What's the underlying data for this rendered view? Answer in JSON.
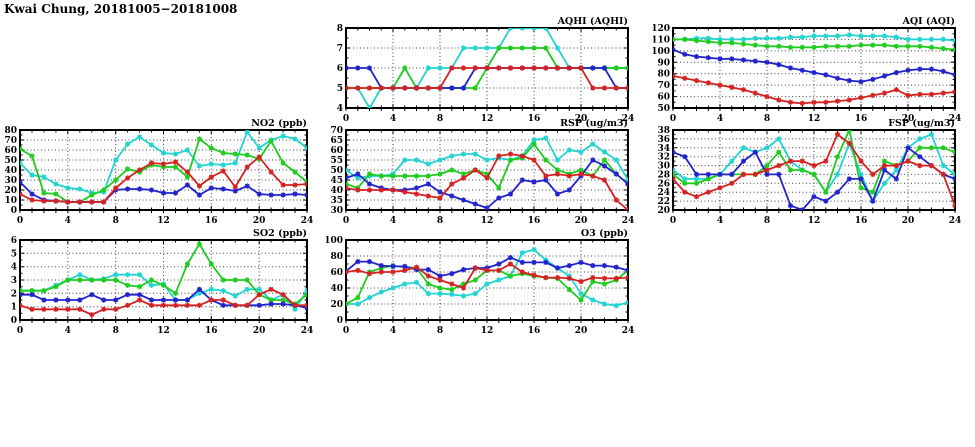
{
  "page_title": "Kwai Chung, 20181005−20181008",
  "colors": {
    "series_cyan": "#22d3d3",
    "series_green": "#1ecc1e",
    "series_blue": "#2222cc",
    "series_red": "#d42222",
    "grid": "#444444",
    "frame": "#000000",
    "background": "#ffffff"
  },
  "chart_data": [
    {
      "id": "aqhi",
      "type": "line",
      "title": "AQHI (AQHI)",
      "xlabel": "",
      "ylabel": "",
      "x": {
        "min": 0,
        "max": 24,
        "ticks": [
          0,
          4,
          8,
          12,
          16,
          20,
          24
        ]
      },
      "y": {
        "min": 4,
        "max": 8,
        "ticks": [
          4,
          5,
          6,
          7,
          8
        ]
      },
      "series": [
        {
          "color_name": "cyan",
          "color": "#22d3d3",
          "values": [
            5,
            5,
            4,
            5,
            5,
            5,
            5,
            6,
            6,
            6,
            7,
            7,
            7,
            7,
            8,
            8,
            8,
            8,
            7,
            6,
            6,
            6,
            6,
            6,
            6
          ]
        },
        {
          "color_name": "green",
          "color": "#1ecc1e",
          "values": [
            5,
            5,
            5,
            5,
            5,
            6,
            5,
            5,
            5,
            5,
            5,
            5,
            6,
            7,
            7,
            7,
            7,
            7,
            6,
            6,
            6,
            6,
            6,
            6,
            6
          ]
        },
        {
          "color_name": "blue",
          "color": "#2222cc",
          "values": [
            6,
            6,
            6,
            5,
            5,
            5,
            5,
            5,
            5,
            5,
            5,
            6,
            6,
            6,
            6,
            6,
            6,
            6,
            6,
            6,
            6,
            6,
            6,
            5,
            5
          ]
        },
        {
          "color_name": "red",
          "color": "#d42222",
          "values": [
            5,
            5,
            5,
            5,
            5,
            5,
            5,
            5,
            5,
            6,
            6,
            6,
            6,
            6,
            6,
            6,
            6,
            6,
            6,
            6,
            6,
            5,
            5,
            5,
            5
          ]
        }
      ]
    },
    {
      "id": "aqi",
      "type": "line",
      "title": "AQI (AQI)",
      "xlabel": "",
      "ylabel": "",
      "x": {
        "min": 0,
        "max": 24,
        "ticks": [
          0,
          4,
          8,
          12,
          16,
          20,
          24
        ]
      },
      "y": {
        "min": 50,
        "max": 120,
        "ticks": [
          50,
          60,
          70,
          80,
          90,
          100,
          110,
          120
        ]
      },
      "series": [
        {
          "color_name": "cyan",
          "color": "#22d3d3",
          "values": [
            110,
            110,
            111,
            111,
            110,
            110,
            110,
            111,
            111,
            111,
            112,
            112,
            113,
            113,
            113,
            114,
            113,
            113,
            113,
            112,
            110,
            110,
            110,
            110,
            109
          ]
        },
        {
          "color_name": "green",
          "color": "#1ecc1e",
          "values": [
            110,
            110,
            109,
            108,
            107,
            107,
            106,
            105,
            104,
            104,
            103,
            103,
            103,
            104,
            104,
            104,
            105,
            105,
            105,
            104,
            104,
            104,
            103,
            102,
            101
          ]
        },
        {
          "color_name": "blue",
          "color": "#2222cc",
          "values": [
            101,
            97,
            95,
            94,
            93,
            93,
            92,
            91,
            90,
            88,
            85,
            83,
            81,
            79,
            76,
            74,
            73,
            75,
            78,
            81,
            83,
            84,
            84,
            82,
            79
          ]
        },
        {
          "color_name": "red",
          "color": "#d42222",
          "values": [
            78,
            76,
            74,
            72,
            70,
            68,
            66,
            63,
            60,
            57,
            55,
            54,
            55,
            55,
            56,
            57,
            59,
            61,
            63,
            66,
            61,
            62,
            62,
            63,
            64
          ]
        }
      ]
    },
    {
      "id": "no2",
      "type": "line",
      "title": "NO2 (ppb)",
      "xlabel": "",
      "ylabel": "",
      "x": {
        "min": 0,
        "max": 24,
        "ticks": [
          0,
          4,
          8,
          12,
          16,
          20,
          24
        ]
      },
      "y": {
        "min": 0,
        "max": 80,
        "ticks": [
          0,
          10,
          20,
          30,
          40,
          50,
          60,
          70,
          80
        ]
      },
      "series": [
        {
          "color_name": "cyan",
          "color": "#22d3d3",
          "values": [
            47,
            35,
            33,
            26,
            22,
            21,
            17,
            18,
            50,
            66,
            73,
            65,
            57,
            56,
            60,
            44,
            46,
            45,
            47,
            78,
            62,
            70,
            74,
            71,
            62
          ]
        },
        {
          "color_name": "green",
          "color": "#1ecc1e",
          "values": [
            61,
            54,
            17,
            16,
            8,
            8,
            15,
            20,
            30,
            41,
            38,
            45,
            43,
            43,
            33,
            71,
            62,
            57,
            56,
            55,
            51,
            69,
            47,
            38,
            28
          ]
        },
        {
          "color_name": "blue",
          "color": "#2222cc",
          "values": [
            28,
            16,
            10,
            9,
            8,
            8,
            8,
            8,
            20,
            21,
            21,
            20,
            17,
            17,
            25,
            15,
            22,
            21,
            19,
            24,
            16,
            15,
            15,
            16,
            15
          ]
        },
        {
          "color_name": "red",
          "color": "#d42222",
          "values": [
            16,
            10,
            9,
            9,
            8,
            8,
            8,
            8,
            22,
            32,
            40,
            47,
            46,
            48,
            38,
            24,
            33,
            39,
            23,
            43,
            53,
            38,
            25,
            25,
            26
          ]
        }
      ]
    },
    {
      "id": "rsp",
      "type": "line",
      "title": "RSP (ug/m3)",
      "xlabel": "",
      "ylabel": "",
      "x": {
        "min": 0,
        "max": 24,
        "ticks": [
          0,
          4,
          8,
          12,
          16,
          20,
          24
        ]
      },
      "y": {
        "min": 30,
        "max": 70,
        "ticks": [
          30,
          35,
          40,
          45,
          50,
          55,
          60,
          65,
          70
        ]
      },
      "series": [
        {
          "color_name": "cyan",
          "color": "#22d3d3",
          "values": [
            50,
            46,
            47,
            47,
            48,
            55,
            55,
            53,
            55,
            57,
            58,
            58,
            55,
            56,
            55,
            57,
            65,
            66,
            55,
            60,
            59,
            63,
            59,
            55,
            45
          ]
        },
        {
          "color_name": "green",
          "color": "#1ecc1e",
          "values": [
            43,
            41,
            48,
            47,
            47,
            47,
            47,
            47,
            48,
            50,
            48,
            50,
            48,
            41,
            55,
            56,
            63,
            55,
            50,
            48,
            50,
            47,
            55,
            48,
            43
          ]
        },
        {
          "color_name": "blue",
          "color": "#2222cc",
          "values": [
            46,
            48,
            43,
            41,
            40,
            40,
            41,
            43,
            39,
            37,
            35,
            33,
            31,
            36,
            38,
            45,
            44,
            45,
            38,
            40,
            47,
            55,
            52,
            48,
            43
          ]
        },
        {
          "color_name": "red",
          "color": "#d42222",
          "values": [
            41,
            40,
            40,
            40,
            40,
            39,
            38,
            37,
            36,
            43,
            46,
            50,
            46,
            57,
            58,
            57,
            55,
            47,
            48,
            47,
            48,
            47,
            45,
            35,
            30
          ]
        }
      ]
    },
    {
      "id": "fsp",
      "type": "line",
      "title": "FSP (ug/m3)",
      "xlabel": "",
      "ylabel": "",
      "x": {
        "min": 0,
        "max": 24,
        "ticks": [
          0,
          4,
          8,
          12,
          16,
          20,
          24
        ]
      },
      "y": {
        "min": 20,
        "max": 38,
        "ticks": [
          20,
          22,
          24,
          26,
          28,
          30,
          32,
          34,
          36,
          38
        ]
      },
      "series": [
        {
          "color_name": "cyan",
          "color": "#22d3d3",
          "values": [
            29,
            27,
            27,
            27,
            28,
            31,
            34,
            33,
            34,
            36,
            31,
            29,
            28,
            24,
            28,
            35,
            28,
            22,
            26,
            29,
            34,
            36,
            37,
            30,
            28
          ]
        },
        {
          "color_name": "green",
          "color": "#1ecc1e",
          "values": [
            28,
            26,
            26,
            27,
            28,
            28,
            28,
            28,
            30,
            33,
            29,
            29,
            28,
            24,
            32,
            38,
            25,
            24,
            31,
            30,
            31,
            34,
            34,
            34,
            33
          ]
        },
        {
          "color_name": "blue",
          "color": "#2222cc",
          "values": [
            33,
            32,
            28,
            28,
            28,
            28,
            31,
            33,
            28,
            28,
            21,
            20,
            23,
            22,
            24,
            27,
            27,
            22,
            29,
            27,
            34,
            32,
            30,
            28,
            27
          ]
        },
        {
          "color_name": "red",
          "color": "#d42222",
          "values": [
            27,
            24,
            23,
            24,
            25,
            26,
            28,
            28,
            29,
            30,
            31,
            31,
            30,
            31,
            37,
            35,
            31,
            28,
            30,
            30,
            31,
            30,
            30,
            28,
            21
          ]
        }
      ]
    },
    {
      "id": "so2",
      "type": "line",
      "title": "SO2 (ppb)",
      "xlabel": "",
      "ylabel": "",
      "x": {
        "min": 0,
        "max": 24,
        "ticks": [
          0,
          4,
          8,
          12,
          16,
          20,
          24
        ]
      },
      "y": {
        "min": 0,
        "max": 6,
        "ticks": [
          0,
          1,
          2,
          3,
          4,
          5,
          6
        ]
      },
      "series": [
        {
          "color_name": "cyan",
          "color": "#22d3d3",
          "values": [
            2.2,
            2.2,
            2.2,
            2.6,
            3.0,
            3.4,
            3.0,
            3.1,
            3.4,
            3.4,
            3.4,
            2.6,
            2.7,
            1.5,
            1.5,
            2.0,
            2.3,
            2.2,
            1.8,
            2.3,
            2.3,
            1.5,
            1.9,
            0.8,
            2.2
          ]
        },
        {
          "color_name": "green",
          "color": "#1ecc1e",
          "values": [
            2.2,
            2.2,
            2.2,
            2.5,
            3.0,
            3.0,
            3.0,
            3.0,
            3.0,
            2.6,
            2.5,
            3.0,
            2.6,
            2.0,
            4.2,
            5.7,
            4.2,
            3.0,
            3.0,
            3.0,
            1.9,
            1.5,
            1.5,
            1.2,
            1.9
          ]
        },
        {
          "color_name": "blue",
          "color": "#2222cc",
          "values": [
            1.9,
            1.9,
            1.5,
            1.5,
            1.5,
            1.5,
            1.9,
            1.5,
            1.5,
            1.9,
            1.9,
            1.5,
            1.5,
            1.5,
            1.5,
            2.3,
            1.5,
            1.1,
            1.1,
            1.1,
            1.1,
            1.2,
            1.2,
            1.1,
            0.9
          ]
        },
        {
          "color_name": "red",
          "color": "#d42222",
          "values": [
            1.1,
            0.8,
            0.8,
            0.8,
            0.8,
            0.8,
            0.4,
            0.8,
            0.8,
            1.1,
            1.5,
            1.1,
            1.1,
            1.1,
            1.1,
            1.1,
            1.5,
            1.5,
            1.1,
            1.1,
            1.9,
            2.3,
            1.9,
            1.1,
            1.1
          ]
        }
      ]
    },
    {
      "id": "o3",
      "type": "line",
      "title": "O3 (ppb)",
      "xlabel": "",
      "ylabel": "",
      "x": {
        "min": 0,
        "max": 24,
        "ticks": [
          0,
          4,
          8,
          12,
          16,
          20,
          24
        ]
      },
      "y": {
        "min": 0,
        "max": 100,
        "ticks": [
          0,
          20,
          40,
          60,
          80,
          100
        ]
      },
      "series": [
        {
          "color_name": "cyan",
          "color": "#22d3d3",
          "values": [
            20,
            20,
            28,
            35,
            40,
            45,
            47,
            33,
            33,
            32,
            30,
            33,
            45,
            50,
            55,
            84,
            88,
            75,
            65,
            55,
            33,
            25,
            20,
            18,
            22
          ]
        },
        {
          "color_name": "green",
          "color": "#1ecc1e",
          "values": [
            20,
            28,
            60,
            65,
            68,
            66,
            65,
            45,
            40,
            38,
            45,
            50,
            62,
            62,
            55,
            58,
            55,
            53,
            52,
            38,
            25,
            48,
            45,
            50,
            62
          ]
        },
        {
          "color_name": "blue",
          "color": "#2222cc",
          "values": [
            61,
            73,
            73,
            68,
            67,
            67,
            63,
            63,
            55,
            58,
            63,
            65,
            65,
            70,
            78,
            72,
            72,
            72,
            65,
            68,
            72,
            68,
            68,
            66,
            62
          ]
        },
        {
          "color_name": "red",
          "color": "#d42222",
          "values": [
            60,
            62,
            58,
            60,
            60,
            62,
            66,
            55,
            50,
            45,
            40,
            65,
            62,
            62,
            70,
            60,
            56,
            53,
            53,
            52,
            48,
            53,
            52,
            52,
            53
          ]
        }
      ]
    }
  ]
}
